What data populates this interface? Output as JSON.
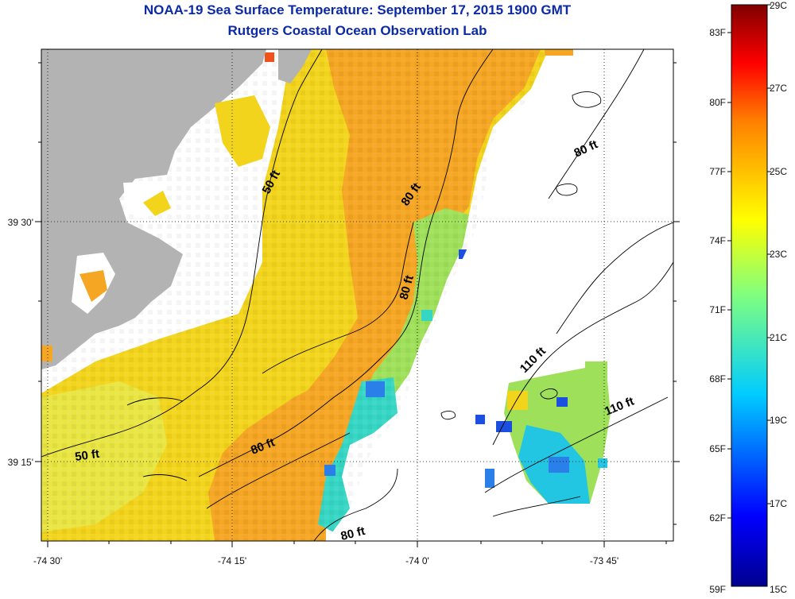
{
  "title": "NOAA-19 Sea Surface Temperature:  September 17, 2015 1900 GMT",
  "subtitle": "Rutgers Coastal Ocean Observation Lab",
  "map": {
    "x_ticks": [
      "-74 30'",
      "-74 15'",
      "-74 0'",
      "-73 45'"
    ],
    "y_ticks": [
      "39 30'",
      "39 15'"
    ],
    "depth_labels": {
      "d50a": "50 ft",
      "d50b": "50 ft",
      "d80a": "80 ft",
      "d80b": "80 ft",
      "d80c": "80 ft",
      "d80d": "80 ft",
      "d110a": "110 ft",
      "d110b": "110 ft"
    }
  },
  "colorbar": {
    "f_labels": [
      "83F",
      "80F",
      "77F",
      "74F",
      "71F",
      "68F",
      "65F",
      "62F",
      "59F"
    ],
    "c_labels": [
      "29C",
      "27C",
      "25C",
      "23C",
      "21C",
      "19C",
      "17C",
      "15C"
    ]
  },
  "colors": {
    "land": "#b3b3b3",
    "ocean_warm": "#f5a623",
    "ocean_mid": "#f2d41c",
    "ocean_cool": "#2fd0c8",
    "ocean_cold": "#1b4fe0",
    "title": "#0c2aa6"
  }
}
